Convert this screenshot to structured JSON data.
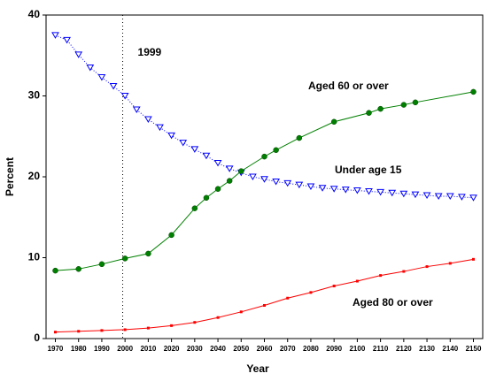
{
  "chart_data": {
    "type": "line",
    "x_label": "Year",
    "y_label": "Percent",
    "xlim": [
      1966,
      2154
    ],
    "ylim": [
      0,
      40
    ],
    "xticks": [
      1970,
      1980,
      1990,
      2000,
      2010,
      2020,
      2030,
      2040,
      2050,
      2060,
      2070,
      2080,
      2090,
      2100,
      2110,
      2120,
      2130,
      2140,
      2150
    ],
    "yticks": [
      0,
      10,
      20,
      30,
      40
    ],
    "annotations": [
      {
        "x": 1999,
        "label": "1999"
      }
    ],
    "series": [
      {
        "name": "Under age 15",
        "color": "#0000ff",
        "line_style": "dotted",
        "marker": "triangle-down",
        "x": [
          1970,
          1975,
          1980,
          1985,
          1990,
          1995,
          2000,
          2005,
          2010,
          2015,
          2020,
          2025,
          2030,
          2035,
          2040,
          2045,
          2050,
          2055,
          2060,
          2065,
          2070,
          2075,
          2080,
          2085,
          2090,
          2095,
          2100,
          2105,
          2110,
          2115,
          2120,
          2125,
          2130,
          2135,
          2140,
          2145,
          2150
        ],
        "values": [
          37.5,
          36.9,
          35.1,
          33.5,
          32.3,
          31.2,
          30.0,
          28.3,
          27.1,
          26.1,
          25.1,
          24.2,
          23.4,
          22.6,
          21.7,
          21.0,
          20.5,
          20.0,
          19.7,
          19.4,
          19.2,
          19.0,
          18.8,
          18.6,
          18.5,
          18.4,
          18.3,
          18.2,
          18.1,
          18.0,
          17.9,
          17.8,
          17.7,
          17.6,
          17.6,
          17.5,
          17.4
        ]
      },
      {
        "name": "Aged 60 or over",
        "color": "#008000",
        "line_style": "solid",
        "marker": "circle",
        "x": [
          1970,
          1980,
          1990,
          2000,
          2010,
          2020,
          2030,
          2035,
          2040,
          2045,
          2050,
          2060,
          2065,
          2075,
          2090,
          2105,
          2110,
          2120,
          2125,
          2150
        ],
        "values": [
          8.4,
          8.6,
          9.2,
          9.9,
          10.5,
          12.8,
          16.1,
          17.4,
          18.5,
          19.5,
          20.7,
          22.5,
          23.3,
          24.8,
          26.8,
          27.9,
          28.4,
          28.9,
          29.2,
          30.5
        ]
      },
      {
        "name": "Aged 80 or over",
        "color": "#ff0000",
        "line_style": "solid",
        "marker": "square",
        "x": [
          1970,
          1980,
          1990,
          2000,
          2010,
          2020,
          2030,
          2040,
          2050,
          2060,
          2070,
          2080,
          2090,
          2100,
          2110,
          2120,
          2130,
          2140,
          2150
        ],
        "values": [
          0.8,
          0.9,
          1.0,
          1.1,
          1.3,
          1.6,
          2.0,
          2.6,
          3.3,
          4.1,
          5.0,
          5.7,
          6.5,
          7.1,
          7.8,
          8.3,
          8.9,
          9.3,
          9.8
        ]
      }
    ]
  }
}
